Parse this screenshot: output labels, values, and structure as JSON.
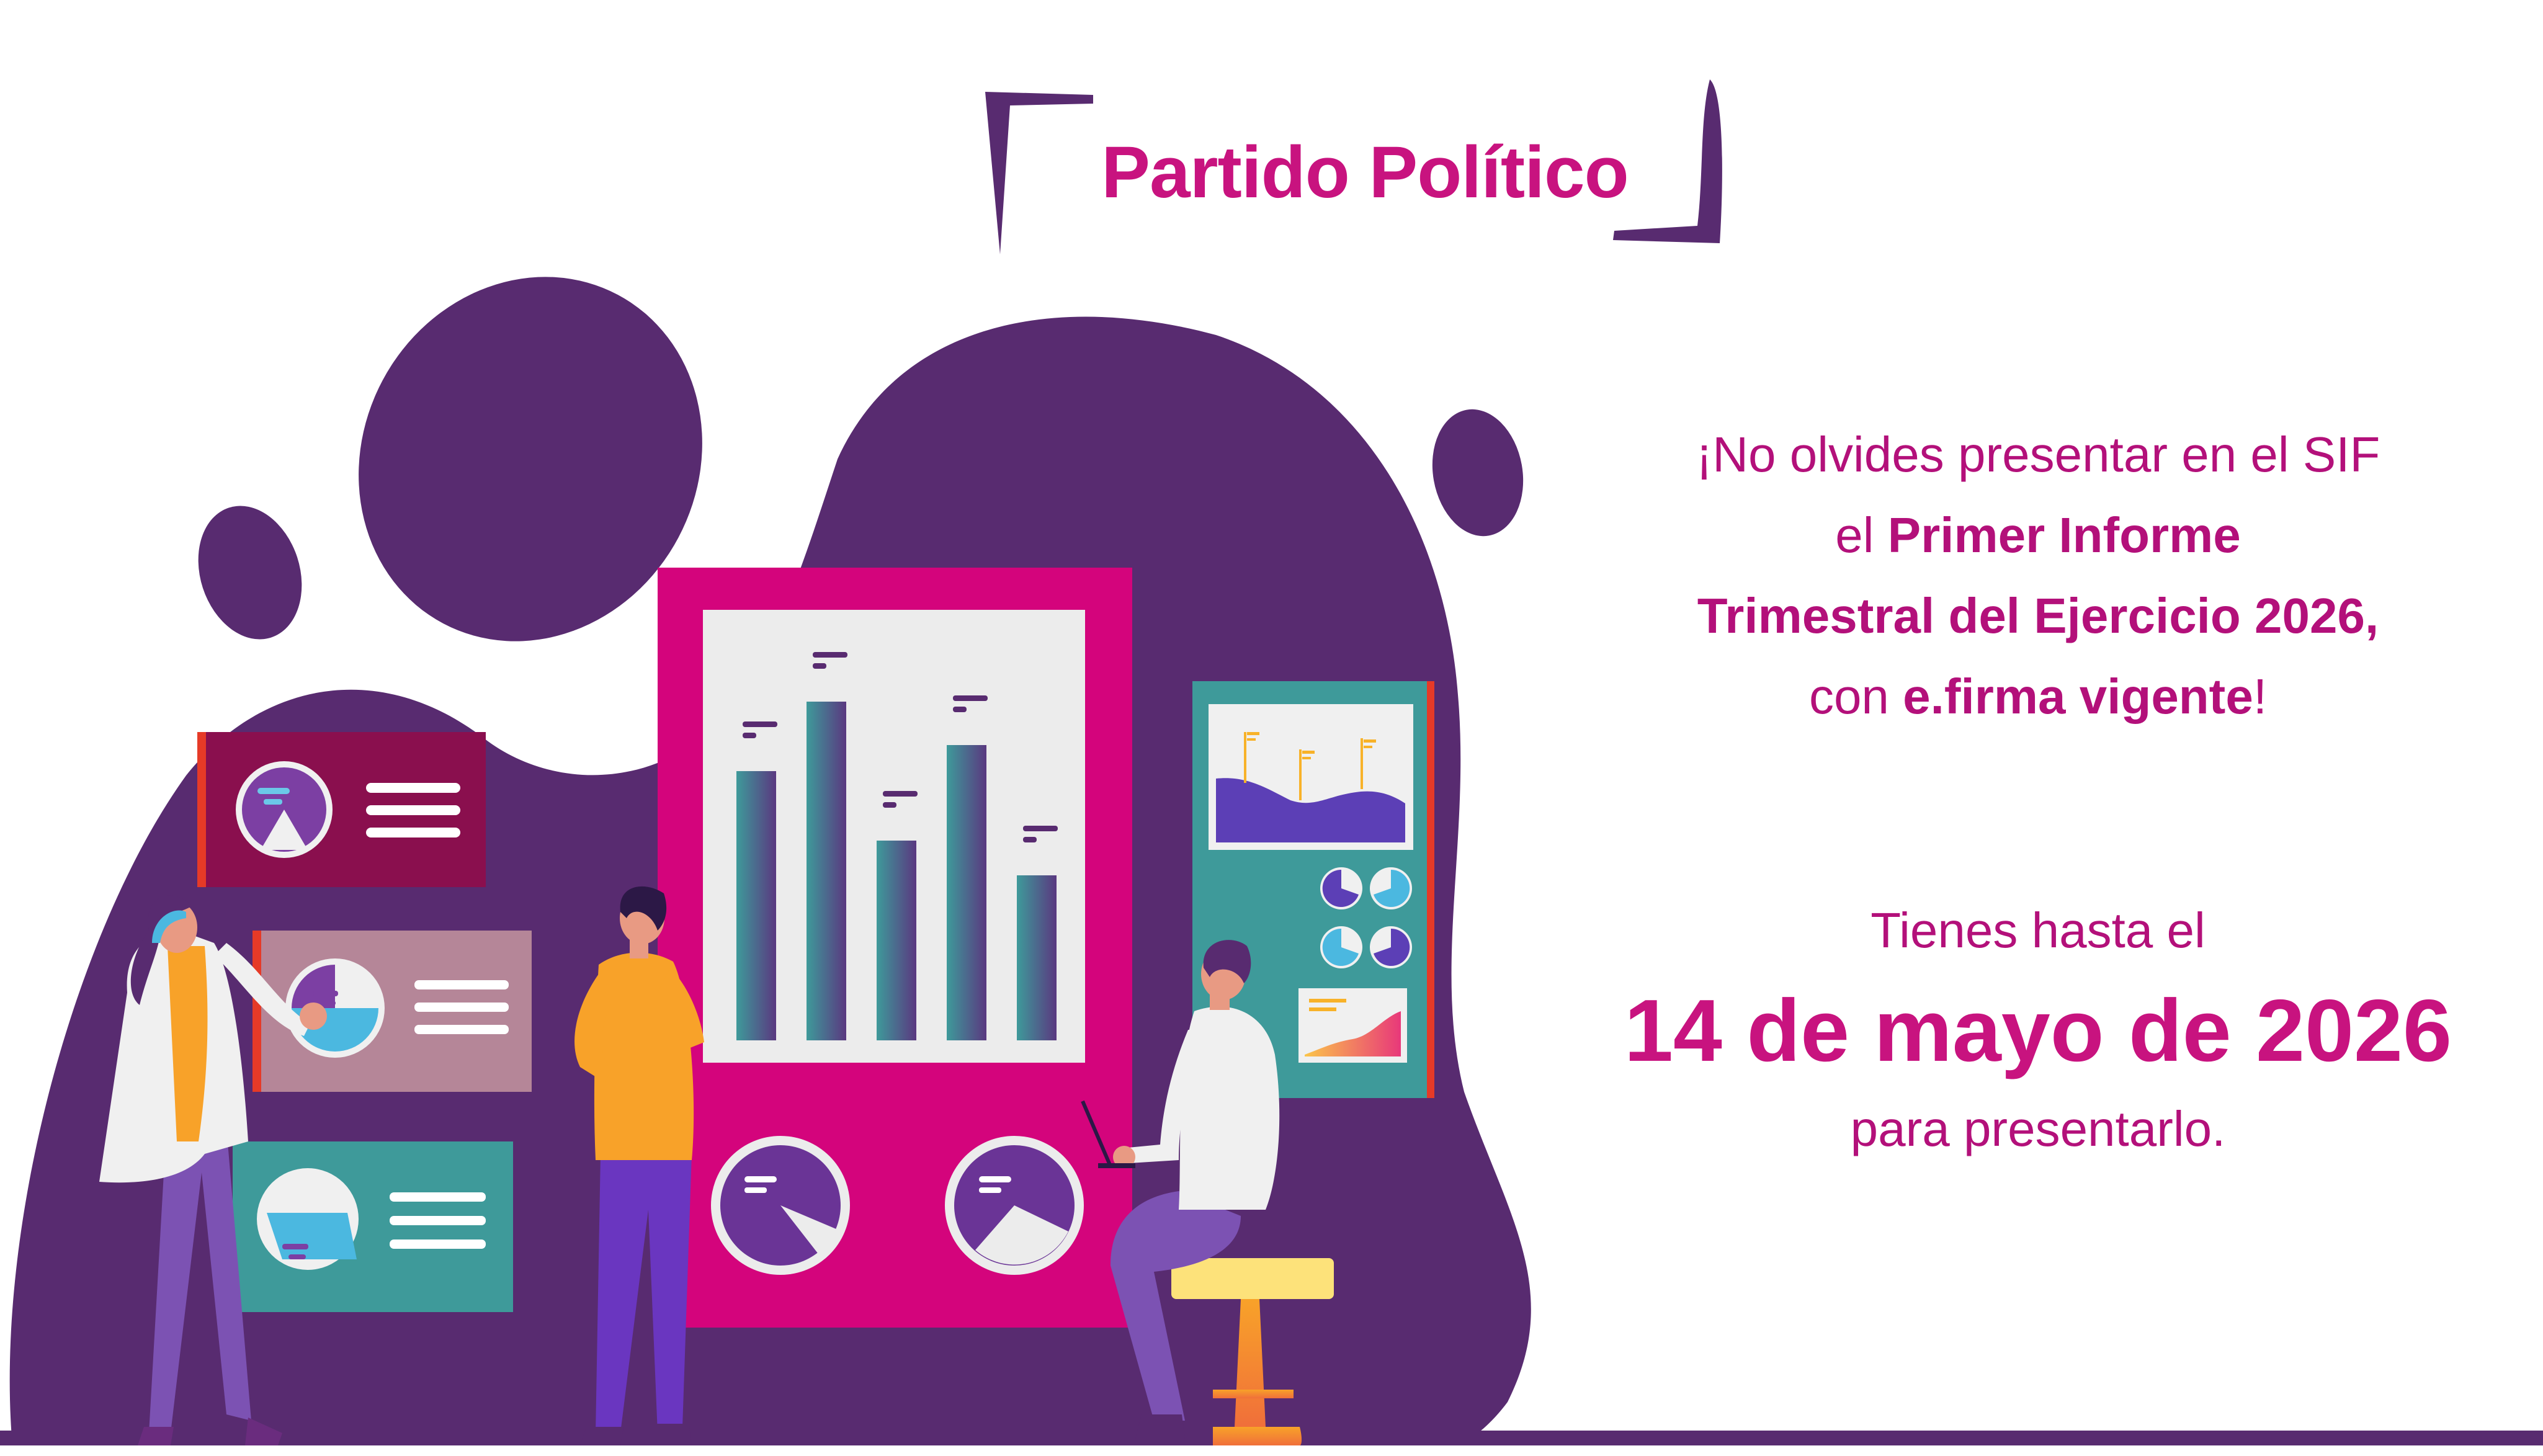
{
  "header": {
    "title": "Partido Político"
  },
  "reminder": {
    "line1": "¡No olvides presentar en el SIF",
    "line2_prefix": "el ",
    "line2_bold": "Primer Informe",
    "line3_bold": "Trimestral del Ejercicio 2026,",
    "line4_prefix": "con ",
    "line4_bold": "e.firma vigente",
    "line4_suffix": "!"
  },
  "deadline": {
    "intro": "Tienes hasta el",
    "date": "14 de mayo de 2026",
    "outro": "para presentarlo."
  },
  "colors": {
    "purple": "#582b70",
    "magenta": "#d4047c",
    "text": "#c8137f",
    "teal": "#3e9a9a"
  },
  "illustration": {
    "main_chart_bars": [
      0.62,
      0.78,
      0.46,
      0.68,
      0.38
    ],
    "main_pie_fill": [
      0.72,
      0.62
    ]
  }
}
